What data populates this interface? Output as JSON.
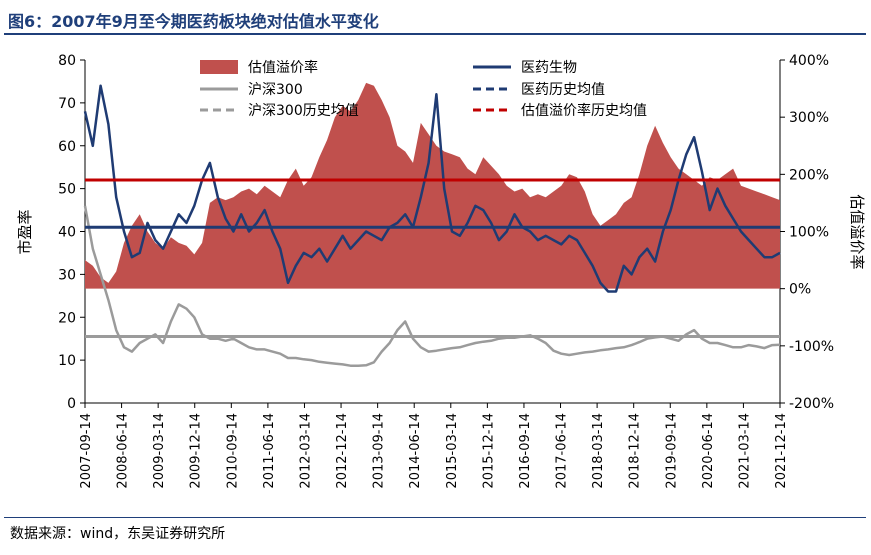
{
  "title": "图6：2007年9月至今期医药板块绝对估值水平变化",
  "source": "数据来源：wind，东吴证券研究所",
  "chart_data": {
    "type": "line",
    "title": "图6：2007年9月至今期医药板块绝对估值水平变化",
    "ylabel_left": "市盈率",
    "ylabel_right": "估值溢价率",
    "ylim_left": [
      0,
      80
    ],
    "ylim_right": [
      -200,
      400
    ],
    "yticks_left": [
      "0",
      "10",
      "20",
      "30",
      "40",
      "50",
      "60",
      "70",
      "80"
    ],
    "yticks_right": [
      "-200%",
      "-100%",
      "0%",
      "100%",
      "200%",
      "300%",
      "400%"
    ],
    "x_labels": [
      "2007-09-14",
      "2008-06-14",
      "2009-03-14",
      "2009-12-14",
      "2010-09-14",
      "2011-06-14",
      "2012-03-14",
      "2012-12-14",
      "2013-09-14",
      "2014-06-14",
      "2015-03-14",
      "2015-12-14",
      "2016-09-14",
      "2017-06-14",
      "2018-03-14",
      "2018-12-14",
      "2019-09-14",
      "2020-06-14",
      "2021-03-14",
      "2021-12-14"
    ],
    "legend": {
      "premium": "估值溢价率",
      "pharma": "医药生物",
      "hs300": "沪深300",
      "pharma_avg": "医药历史均值",
      "hs300_avg": "沪深300历史均值",
      "premium_avg": "估值溢价率历史均值"
    },
    "colors": {
      "premium": "#c0504d",
      "pharma": "#1f3b73",
      "hs300": "#9b9b9b",
      "premium_avg": "#c00000",
      "pharma_avg": "#1f3b73",
      "hs300_avg": "#9b9b9b"
    },
    "averages": {
      "pharma_pe": 41,
      "hs300_pe": 15.5,
      "premium_pct": 190
    },
    "pharma_pe": [
      68,
      60,
      74,
      65,
      48,
      40,
      34,
      35,
      42,
      38,
      36,
      40,
      44,
      42,
      46,
      52,
      56,
      48,
      43,
      40,
      44,
      40,
      42,
      45,
      40,
      36,
      28,
      32,
      35,
      34,
      36,
      33,
      36,
      39,
      36,
      38,
      40,
      39,
      38,
      41,
      42,
      44,
      41,
      48,
      56,
      72,
      50,
      40,
      39,
      42,
      46,
      45,
      42,
      38,
      40,
      44,
      41,
      40,
      38,
      39,
      38,
      37,
      39,
      38,
      35,
      32,
      28,
      26,
      26,
      32,
      30,
      34,
      36,
      33,
      40,
      45,
      52,
      58,
      62,
      54,
      45,
      50,
      46,
      43,
      40,
      38,
      36,
      34,
      34,
      35
    ],
    "hs300_pe": [
      46,
      36,
      30,
      24,
      17,
      13,
      12,
      14,
      15,
      16,
      14,
      19,
      23,
      22,
      20,
      16,
      15,
      15,
      14.5,
      15,
      14,
      13,
      12.5,
      12.5,
      12,
      11.5,
      10.5,
      10.5,
      10.2,
      10,
      9.6,
      9.4,
      9.2,
      9,
      8.7,
      8.7,
      8.8,
      9.5,
      12,
      14,
      17,
      19,
      15,
      13,
      12,
      12.2,
      12.5,
      12.8,
      13,
      13.5,
      14,
      14.3,
      14.5,
      15,
      15.2,
      15.2,
      15.5,
      15.8,
      15,
      14,
      12.2,
      11.5,
      11.2,
      11.5,
      11.8,
      12,
      12.3,
      12.5,
      12.8,
      13,
      13.5,
      14.2,
      15,
      15.3,
      15.5,
      15,
      14.5,
      16,
      17,
      15,
      14,
      14,
      13.5,
      13,
      13,
      13.5,
      13.2,
      12.8,
      13.5,
      13.6
    ],
    "premium_pct": [
      50,
      40,
      20,
      10,
      30,
      80,
      110,
      130,
      100,
      80,
      70,
      90,
      80,
      75,
      60,
      80,
      150,
      160,
      155,
      160,
      170,
      175,
      165,
      180,
      170,
      160,
      190,
      210,
      180,
      195,
      230,
      260,
      300,
      320,
      310,
      330,
      360,
      355,
      330,
      300,
      250,
      240,
      220,
      290,
      270,
      250,
      240,
      235,
      230,
      210,
      200,
      230,
      215,
      200,
      180,
      170,
      175,
      160,
      165,
      160,
      170,
      180,
      200,
      195,
      170,
      130,
      110,
      120,
      130,
      150,
      160,
      200,
      250,
      285,
      255,
      230,
      210,
      200,
      190,
      180,
      195,
      190,
      200,
      210,
      180,
      175,
      170,
      165,
      160,
      155
    ]
  }
}
